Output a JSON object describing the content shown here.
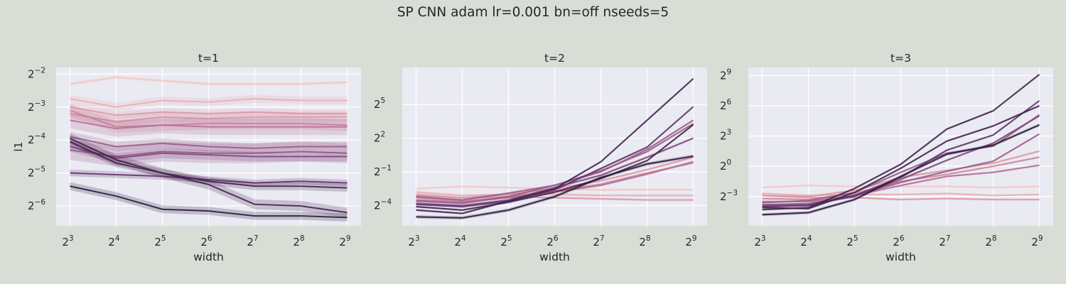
{
  "figure": {
    "suptitle": "SP CNN adam lr=0.001 bn=off nseeds=5"
  },
  "colors": {
    "background": "#d8ddd6",
    "axes_face": "#eaeaf2",
    "grid": "#ffffff",
    "palette": [
      "#f3c8c4",
      "#e8aeb1",
      "#dc98a4",
      "#cc849a",
      "#b56f92",
      "#9a5b88",
      "#7e467b",
      "#62336b",
      "#45244f",
      "#2a1a3a"
    ]
  },
  "chart_data": [
    {
      "type": "line",
      "title": "t=1",
      "xlabel": "width",
      "ylabel": "l1",
      "x": [
        8,
        16,
        32,
        64,
        128,
        256,
        512
      ],
      "x_tick_labels": [
        {
          "b": "2",
          "e": "3"
        },
        {
          "b": "2",
          "e": "4"
        },
        {
          "b": "2",
          "e": "5"
        },
        {
          "b": "2",
          "e": "6"
        },
        {
          "b": "2",
          "e": "7"
        },
        {
          "b": "2",
          "e": "8"
        },
        {
          "b": "2",
          "e": "9"
        }
      ],
      "x_scale": "log2",
      "y_scale": "log2",
      "ylim_log2": [
        -6.6,
        -1.8
      ],
      "y_ticks_log2": [
        -2,
        -3,
        -4,
        -5,
        -6
      ],
      "y_tick_labels": [
        {
          "b": "2",
          "e": "−2"
        },
        {
          "b": "2",
          "e": "−3"
        },
        {
          "b": "2",
          "e": "−4"
        },
        {
          "b": "2",
          "e": "−5"
        },
        {
          "b": "2",
          "e": "−6"
        }
      ],
      "grid": true,
      "series_log2": [
        {
          "values": [
            -2.3,
            -2.1,
            -2.2,
            -2.3,
            -2.3,
            -2.3,
            -2.25
          ],
          "band": 0.05
        },
        {
          "values": [
            -2.75,
            -3.0,
            -2.8,
            -2.85,
            -2.75,
            -2.8,
            -2.8
          ],
          "band": 0.12
        },
        {
          "values": [
            -3.0,
            -3.25,
            -3.15,
            -3.2,
            -3.15,
            -3.2,
            -3.2
          ],
          "band": 0.12
        },
        {
          "values": [
            -3.2,
            -3.45,
            -3.3,
            -3.35,
            -3.3,
            -3.3,
            -3.3
          ],
          "band": 0.15
        },
        {
          "values": [
            -3.1,
            -3.6,
            -3.55,
            -3.5,
            -3.5,
            -3.5,
            -3.55
          ],
          "band": 0.18
        },
        {
          "values": [
            -3.4,
            -3.65,
            -3.55,
            -3.6,
            -3.6,
            -3.6,
            -3.6
          ],
          "band": 0.25
        },
        {
          "values": [
            -4.3,
            -4.5,
            -4.35,
            -4.4,
            -4.4,
            -4.35,
            -4.4
          ],
          "band": 0.3
        },
        {
          "values": [
            -3.9,
            -4.2,
            -4.1,
            -4.2,
            -4.25,
            -4.2,
            -4.2
          ],
          "band": 0.15
        },
        {
          "values": [
            -4.2,
            -4.55,
            -4.4,
            -4.45,
            -4.5,
            -4.5,
            -4.5
          ],
          "band": 0.15
        },
        {
          "values": [
            -5.0,
            -5.05,
            -5.1,
            -5.2,
            -5.3,
            -5.25,
            -5.3
          ],
          "band": 0.1
        },
        {
          "values": [
            -4.05,
            -4.7,
            -5.0,
            -5.25,
            -5.4,
            -5.4,
            -5.45
          ],
          "band": 0.12
        },
        {
          "values": [
            -3.95,
            -4.6,
            -5.0,
            -5.35,
            -5.95,
            -6.0,
            -6.2
          ],
          "band": 0.15
        },
        {
          "values": [
            -5.4,
            -5.7,
            -6.1,
            -6.15,
            -6.3,
            -6.3,
            -6.35
          ],
          "band": 0.12
        }
      ]
    },
    {
      "type": "line",
      "title": "t=2",
      "xlabel": "width",
      "ylabel": "",
      "x": [
        8,
        16,
        32,
        64,
        128,
        256,
        512
      ],
      "x_tick_labels": [
        {
          "b": "2",
          "e": "3"
        },
        {
          "b": "2",
          "e": "4"
        },
        {
          "b": "2",
          "e": "5"
        },
        {
          "b": "2",
          "e": "6"
        },
        {
          "b": "2",
          "e": "7"
        },
        {
          "b": "2",
          "e": "8"
        },
        {
          "b": "2",
          "e": "9"
        }
      ],
      "x_scale": "log2",
      "y_scale": "log2",
      "ylim_log2": [
        -5.8,
        8.3
      ],
      "y_ticks_log2": [
        5,
        2,
        -1,
        -4
      ],
      "y_tick_labels": [
        {
          "b": "2",
          "e": "5"
        },
        {
          "b": "2",
          "e": "2"
        },
        {
          "b": "2",
          "e": "−1"
        },
        {
          "b": "2",
          "e": "−4"
        }
      ],
      "grid": true,
      "series_log2": [
        {
          "values": [
            -2.5,
            -2.3,
            -2.4,
            -2.5,
            -2.6,
            -2.6,
            -2.6
          ],
          "band": 0.1
        },
        {
          "values": [
            -2.8,
            -3.1,
            -3.0,
            -3.0,
            -3.1,
            -3.1,
            -3.1
          ],
          "band": 0.1
        },
        {
          "values": [
            -3.0,
            -3.3,
            -3.2,
            -3.3,
            -3.4,
            -3.5,
            -3.5
          ],
          "band": 0.1
        },
        {
          "values": [
            -3.1,
            -3.3,
            -3.0,
            -2.5,
            -1.8,
            -0.8,
            0.3
          ],
          "band": 0.1
        },
        {
          "values": [
            -3.3,
            -3.6,
            -3.2,
            -2.7,
            -2.1,
            -1.1,
            -0.2
          ],
          "band": 0.1
        },
        {
          "values": [
            -3.5,
            -3.7,
            -3.3,
            -2.8,
            -2.2,
            -1.2,
            -0.1
          ],
          "band": 0.1
        },
        {
          "values": [
            -3.2,
            -3.5,
            -2.9,
            -2.2,
            -1.0,
            1.0,
            3.6
          ],
          "band": 0.1
        },
        {
          "values": [
            -3.6,
            -3.8,
            -3.2,
            -2.2,
            -0.9,
            0.8,
            3.3
          ],
          "band": 0.1
        },
        {
          "values": [
            -3.8,
            -4.0,
            -3.5,
            -2.4,
            -1.3,
            0.3,
            2.0
          ],
          "band": 0.1
        },
        {
          "values": [
            -3.9,
            -4.1,
            -3.6,
            -2.6,
            -0.7,
            1.2,
            4.8
          ],
          "band": 0.1
        },
        {
          "values": [
            -4.1,
            -4.4,
            -3.7,
            -2.8,
            -1.6,
            0.0,
            3.2
          ],
          "band": 0.1
        },
        {
          "values": [
            -4.4,
            -4.7,
            -3.6,
            -2.5,
            -0.1,
            3.6,
            7.3
          ],
          "band": 0.1
        },
        {
          "values": [
            -5.0,
            -5.1,
            -4.4,
            -3.2,
            -1.5,
            -0.3,
            0.4
          ],
          "band": 0.15
        }
      ]
    },
    {
      "type": "line",
      "title": "t=3",
      "xlabel": "width",
      "ylabel": "",
      "x": [
        8,
        16,
        32,
        64,
        128,
        256,
        512
      ],
      "x_tick_labels": [
        {
          "b": "2",
          "e": "3"
        },
        {
          "b": "2",
          "e": "4"
        },
        {
          "b": "2",
          "e": "5"
        },
        {
          "b": "2",
          "e": "6"
        },
        {
          "b": "2",
          "e": "7"
        },
        {
          "b": "2",
          "e": "8"
        },
        {
          "b": "2",
          "e": "9"
        }
      ],
      "x_scale": "log2",
      "y_scale": "log2",
      "ylim_log2": [
        -5.9,
        9.8
      ],
      "y_ticks_log2": [
        9,
        6,
        3,
        0,
        -3
      ],
      "y_tick_labels": [
        {
          "b": "2",
          "e": "9"
        },
        {
          "b": "2",
          "e": "6"
        },
        {
          "b": "2",
          "e": "3"
        },
        {
          "b": "2",
          "e": "0"
        },
        {
          "b": "2",
          "e": "−3"
        }
      ],
      "grid": true,
      "series_log2": [
        {
          "values": [
            -2.1,
            -1.9,
            -2.0,
            -2.0,
            -2.0,
            -2.1,
            -2.0
          ],
          "band": 0.1
        },
        {
          "values": [
            -2.7,
            -2.9,
            -2.8,
            -2.8,
            -2.7,
            -2.9,
            -2.8
          ],
          "band": 0.1
        },
        {
          "values": [
            -2.9,
            -3.1,
            -3.1,
            -3.3,
            -3.2,
            -3.3,
            -3.3
          ],
          "band": 0.1
        },
        {
          "values": [
            -2.9,
            -3.0,
            -2.4,
            -1.1,
            -0.4,
            0.3,
            1.5
          ],
          "band": 0.1
        },
        {
          "values": [
            -3.2,
            -3.3,
            -2.7,
            -1.5,
            -0.8,
            0.0,
            0.9
          ],
          "band": 0.1
        },
        {
          "values": [
            -3.5,
            -3.5,
            -2.9,
            -1.9,
            -1.0,
            -0.6,
            0.1
          ],
          "band": 0.1
        },
        {
          "values": [
            -3.8,
            -3.7,
            -2.9,
            -1.6,
            -0.5,
            0.5,
            3.2
          ],
          "band": 0.1
        },
        {
          "values": [
            -3.6,
            -3.4,
            -2.6,
            -0.6,
            1.3,
            2.0,
            5.1
          ],
          "band": 0.1
        },
        {
          "values": [
            -3.9,
            -3.8,
            -3.0,
            -1.3,
            0.6,
            2.3,
            5.0
          ],
          "band": 0.1
        },
        {
          "values": [
            -4.0,
            -3.9,
            -2.9,
            -1.1,
            1.6,
            3.1,
            6.5
          ],
          "band": 0.1
        },
        {
          "values": [
            -4.1,
            -4.2,
            -2.6,
            -0.2,
            2.5,
            4.0,
            6.0
          ],
          "band": 0.1
        },
        {
          "values": [
            -4.3,
            -4.1,
            -2.2,
            0.2,
            3.7,
            5.5,
            9.1
          ],
          "band": 0.1
        },
        {
          "values": [
            -4.8,
            -4.6,
            -3.3,
            -1.0,
            1.2,
            2.1,
            4.1
          ],
          "band": 0.15
        }
      ]
    }
  ]
}
